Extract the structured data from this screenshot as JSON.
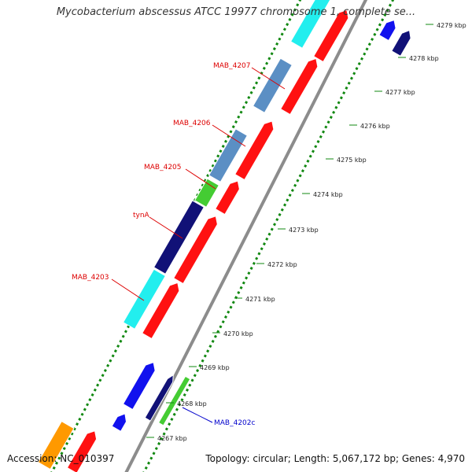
{
  "title": "Mycobacterium abscessus ATCC 19977 chromosome 1, complete se...",
  "footer": {
    "accession": "Accession: NC_010397",
    "summary": "Topology: circular; Length: 5,067,172 bp; Genes: 4,970"
  },
  "ticks": [
    "4267 kbp",
    "4268 kbp",
    "4269 kbp",
    "4270 kbp",
    "4271 kbp",
    "4272 kbp",
    "4273 kbp",
    "4274 kbp",
    "4275 kbp",
    "4276 kbp",
    "4277 kbp",
    "4278 kbp",
    "4279 kbp"
  ],
  "gene_labels": [
    {
      "text": "MAB_4207",
      "color": "#dd0000"
    },
    {
      "text": "MAB_4206",
      "color": "#dd0000"
    },
    {
      "text": "MAB_4205",
      "color": "#dd0000"
    },
    {
      "text": "tynA",
      "color": "#dd0000"
    },
    {
      "text": "MAB_4203",
      "color": "#dd0000"
    },
    {
      "text": "MAB_4202c",
      "color": "#0000cc"
    }
  ],
  "colors": {
    "cyan": "#22eeee",
    "red": "#ff1111",
    "steel": "#5b8fc4",
    "green": "#44cc33",
    "navy": "#111177",
    "blue": "#1111ee",
    "orange": "#ff9900",
    "axis": "#8c8c8c",
    "dots": "#118811"
  }
}
